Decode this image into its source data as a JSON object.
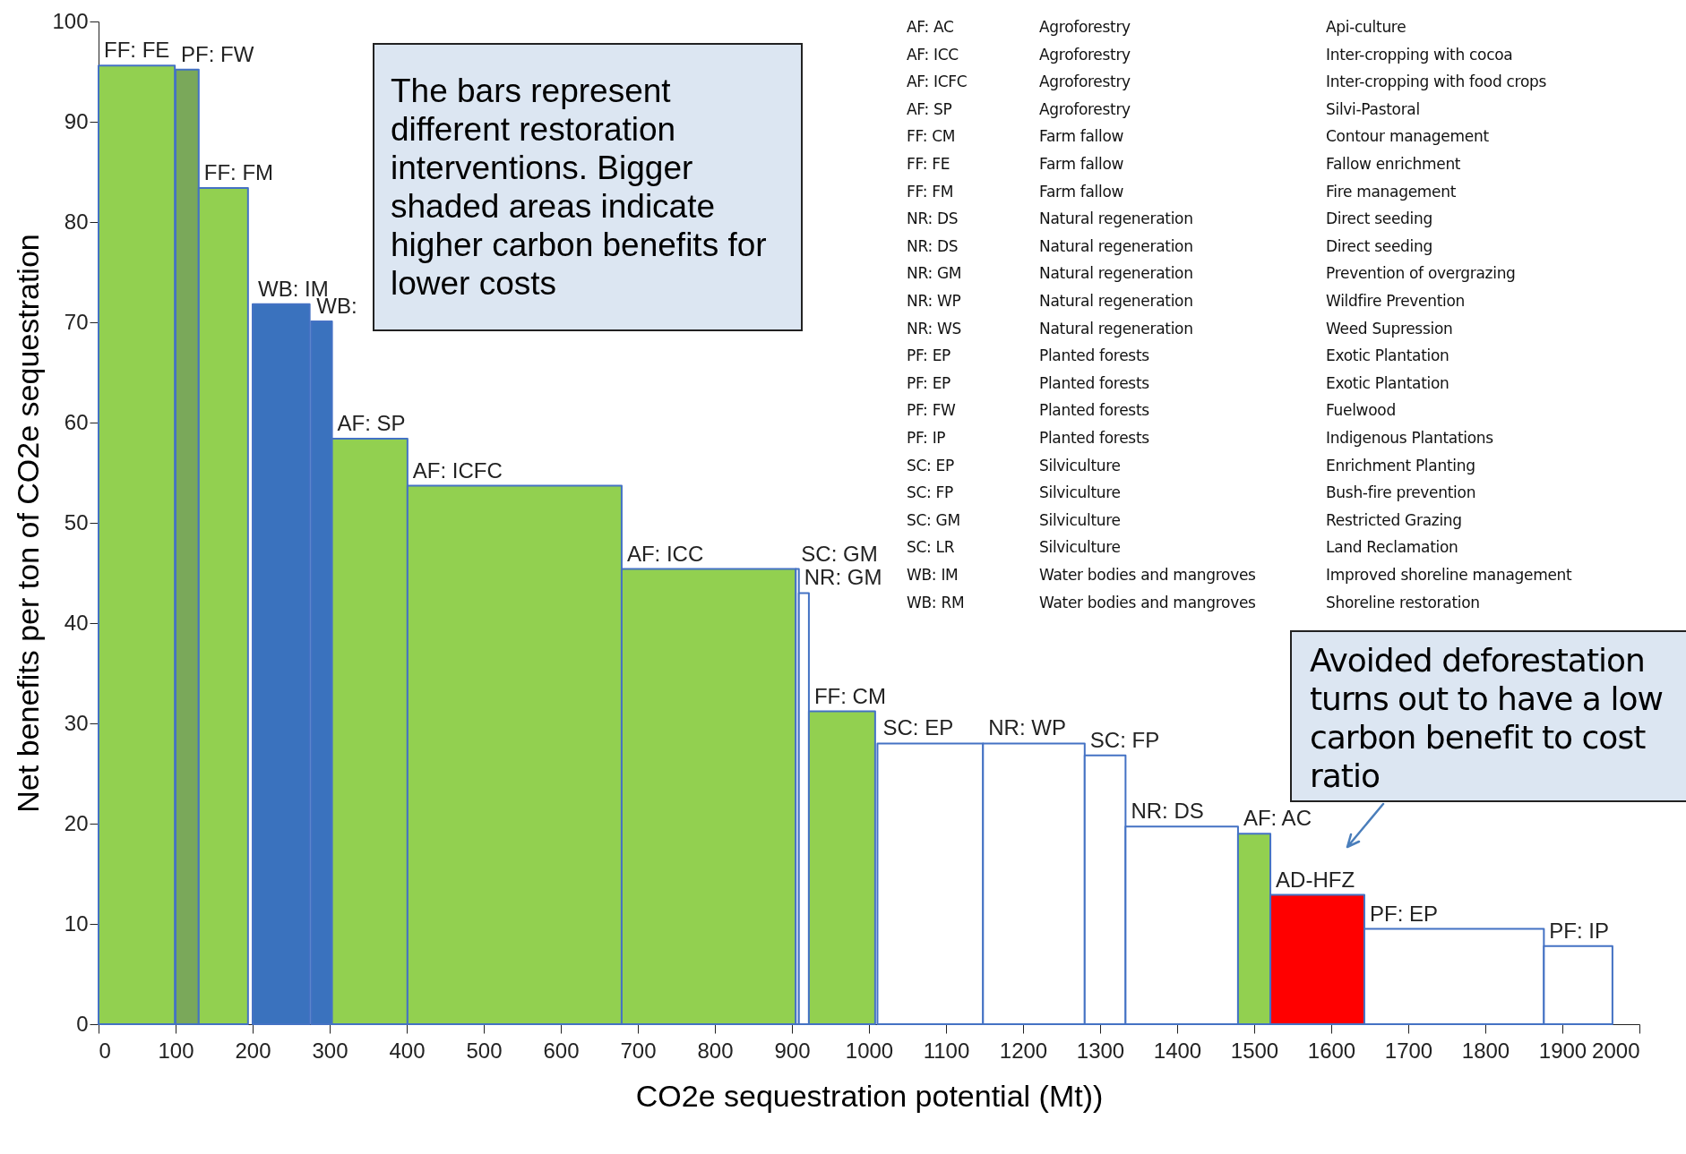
{
  "chart_data": {
    "type": "area",
    "xlabel": "CO2e sequestration potential (Mt))",
    "ylabel": "Net benefits per ton of CO2e sequestration",
    "xlim": [
      0,
      2000
    ],
    "xticks": [
      0,
      100,
      200,
      300,
      400,
      500,
      600,
      700,
      800,
      900,
      1000,
      1100,
      1200,
      1300,
      1400,
      1500,
      1600,
      1700,
      1800,
      1900,
      2000
    ],
    "ylim": [
      0,
      100
    ],
    "yticks": [
      0,
      10,
      20,
      30,
      40,
      50,
      60,
      70,
      80,
      90,
      100
    ],
    "series": [
      {
        "name": "FF: FE",
        "type": "area",
        "color": "#92d050",
        "x": [
          0,
          99
        ],
        "values": [
          95.6,
          95.6
        ]
      },
      {
        "name": "PF: FW",
        "type": "area",
        "color": "#7aa85a",
        "x": [
          100,
          130
        ],
        "values": [
          95.2,
          95.2
        ]
      },
      {
        "name": "FF: FM",
        "type": "area",
        "color": "#92d050",
        "x": [
          130,
          194
        ],
        "values": [
          83.4,
          83.4
        ]
      },
      {
        "name": "WB: IM",
        "type": "area",
        "color": "#3a72be",
        "x": [
          200,
          274
        ],
        "values": [
          71.8,
          71.8
        ]
      },
      {
        "name": "WB:",
        "type": "area",
        "color": "#3a72be",
        "x": [
          276,
          303
        ],
        "values": [
          70.1,
          70.1
        ]
      },
      {
        "name": "AF: SP",
        "type": "area",
        "color": "#92d050",
        "x": [
          303,
          401
        ],
        "values": [
          58.4,
          58.4
        ]
      },
      {
        "name": "AF: ICFC",
        "type": "area",
        "color": "#92d050",
        "x": [
          401,
          679
        ],
        "values": [
          53.7,
          53.7
        ]
      },
      {
        "name": "AF: ICC",
        "type": "area",
        "color": "#92d050",
        "x": [
          679,
          905
        ],
        "values": [
          45.4,
          45.4
        ]
      },
      {
        "name": "SC: GM",
        "type": "area",
        "color": "#ffffff",
        "x": [
          905,
          909
        ],
        "values": [
          45.4,
          45.4
        ]
      },
      {
        "name": "NR: GM",
        "type": "area",
        "color": "#ffffff",
        "x": [
          909,
          922
        ],
        "values": [
          43,
          43
        ]
      },
      {
        "name": "FF: CM",
        "type": "area",
        "color": "#92d050",
        "x": [
          922,
          1008
        ],
        "values": [
          31.2,
          31.2
        ]
      },
      {
        "name": "SC: EP",
        "type": "area",
        "color": "#ffffff",
        "x": [
          1011,
          1148
        ],
        "values": [
          28,
          28
        ]
      },
      {
        "name": "NR: WP",
        "type": "area",
        "color": "#ffffff",
        "x": [
          1148,
          1280
        ],
        "values": [
          28,
          28
        ]
      },
      {
        "name": "SC: FP",
        "type": "area",
        "color": "#ffffff",
        "x": [
          1280,
          1333
        ],
        "values": [
          26.8,
          26.8
        ]
      },
      {
        "name": "NR: DS",
        "type": "area",
        "color": "#ffffff",
        "x": [
          1333,
          1479
        ],
        "values": [
          19.7,
          19.7
        ]
      },
      {
        "name": "AF: AC",
        "type": "area",
        "color": "#92d050",
        "x": [
          1479,
          1521
        ],
        "values": [
          19,
          19
        ]
      },
      {
        "name": "AD-HFZ",
        "type": "area",
        "color": "#ff0000",
        "x": [
          1521,
          1643
        ],
        "values": [
          12.9,
          12.9
        ]
      },
      {
        "name": "PF: EP",
        "type": "area",
        "color": "#ffffff",
        "x": [
          1643,
          1876
        ],
        "values": [
          9.5,
          9.5
        ]
      },
      {
        "name": "PF: IP",
        "type": "area",
        "color": "#ffffff",
        "x": [
          1876,
          1965
        ],
        "values": [
          7.8,
          7.8
        ]
      }
    ],
    "annotations": [
      "The bars represent different restoration interventions. Bigger shaded areas indicate higher carbon benefits for lower costs",
      "Avoided deforestation turns out to have a low carbon benefit to cost ratio",
      "AF: AC",
      "Agroforestry",
      "Api-culture",
      "AF: ICC",
      "Agroforestry",
      "Inter-cropping with cocoa",
      "AF: ICFC",
      "Agroforestry",
      "Inter-cropping with food crops",
      "AF: SP",
      "Agroforestry",
      "Silvi-Pastoral",
      "FF: CM",
      "Farm fallow",
      "Contour management",
      "FF: FE",
      "Farm fallow",
      "Fallow enrichment",
      "FF: FM",
      "Farm fallow",
      "Fire management",
      "NR: DS",
      "Natural regeneration",
      "Direct seeding",
      "NR: DS",
      "Natural regeneration",
      "Direct seeding",
      "NR: GM",
      "Natural regeneration",
      "Prevention of overgrazing",
      "NR: WP",
      "Natural regeneration",
      "Wildfire Prevention",
      "NR: WS",
      "Natural regeneration",
      "Weed Supression",
      "PF: EP",
      "Planted forests",
      "Exotic Plantation",
      "PF: EP",
      "Planted forests",
      "Exotic Plantation",
      "PF: FW",
      "Planted forests",
      "Fuelwood",
      "PF: IP",
      "Planted forests",
      "Indigenous Plantations",
      "SC: EP",
      "Silviculture",
      "Enrichment Planting",
      "SC: FP",
      "Silviculture",
      "Bush-fire prevention",
      "SC: GM",
      "Silviculture",
      "Restricted Grazing",
      "SC: LR",
      "Silviculture",
      "Land Reclamation",
      "WB: IM",
      "Water bodies and mangroves",
      "Improved shoreline management",
      "WB: RM",
      "Water bodies and mangroves",
      "Shoreline restoration"
    ]
  }
}
